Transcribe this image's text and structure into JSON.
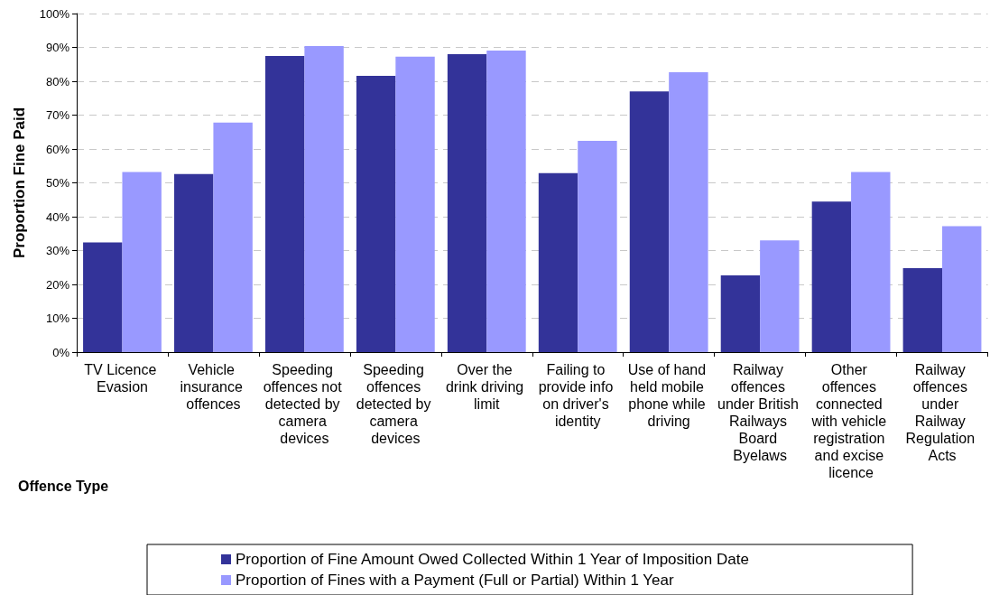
{
  "chart_data": {
    "type": "bar",
    "xlabel": "Offence Type",
    "ylabel": "Proportion Fine Paid",
    "categories": [
      "TV Licence Evasion",
      "Vehicle insurance offences",
      "Speeding offences not detected by camera devices",
      "Speeding offences detected by camera devices",
      "Over the drink driving limit",
      "Failing to provide info on driver's identity",
      "Use of hand held mobile phone while driving",
      "Railway offences under British Railways Board Byelaws",
      "Other offences connected with vehicle registration and excise licence",
      "Railway offences under Railway Regulation Acts"
    ],
    "series": [
      {
        "name": "Proportion of Fine Amount Owed Collected Within 1 Year of Imposition Date",
        "color": "#333399",
        "values": [
          32.4,
          52.6,
          87.5,
          81.6,
          88.0,
          52.9,
          77.0,
          22.7,
          44.5,
          24.8
        ]
      },
      {
        "name": "Proportion of Fines with a Payment (Full or Partial) Within 1 Year",
        "color": "#9999ff",
        "values": [
          53.2,
          67.8,
          90.4,
          87.3,
          89.1,
          62.4,
          82.7,
          33.0,
          53.2,
          37.2
        ]
      }
    ],
    "ylim": [
      0,
      100
    ],
    "yticks": [
      {
        "value": 0,
        "label": "0%"
      },
      {
        "value": 10,
        "label": "10%"
      },
      {
        "value": 20,
        "label": "20%"
      },
      {
        "value": 30,
        "label": "30%"
      },
      {
        "value": 40,
        "label": "40%"
      },
      {
        "value": 50,
        "label": "50%"
      },
      {
        "value": 60,
        "label": "60%"
      },
      {
        "value": 70,
        "label": "70%"
      },
      {
        "value": 80,
        "label": "80%"
      },
      {
        "value": 90,
        "label": "90%"
      },
      {
        "value": 100,
        "label": "100%"
      }
    ],
    "grid": "y",
    "legend": "bottom"
  }
}
